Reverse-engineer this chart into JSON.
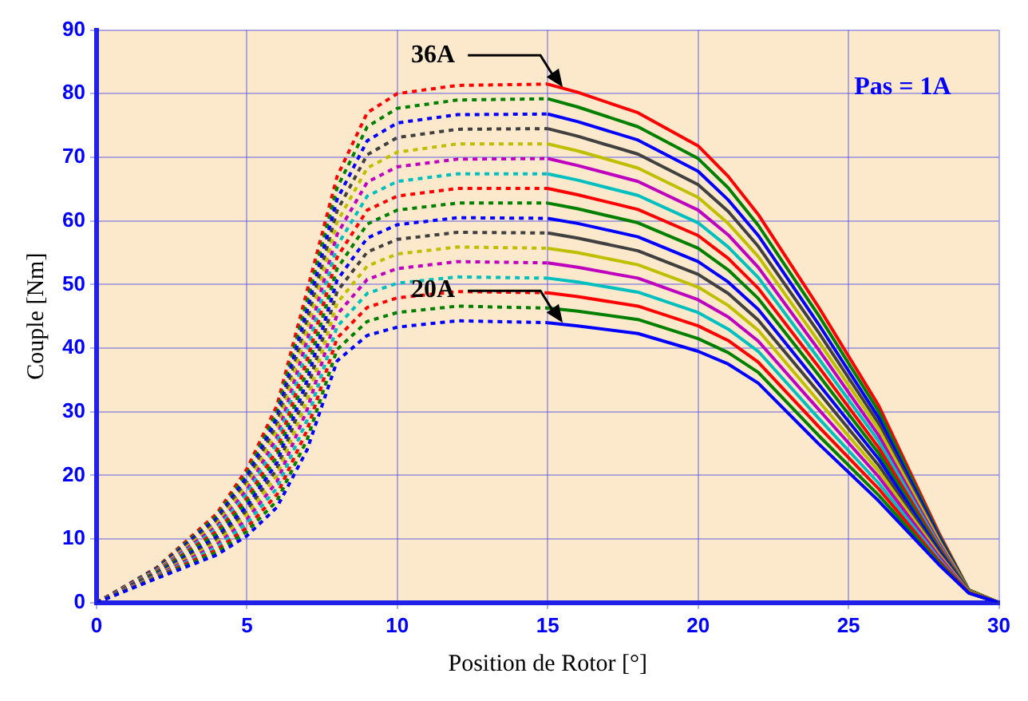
{
  "chart_data": {
    "type": "line",
    "xlabel": "Position de Rotor [°]",
    "ylabel": "Couple [Nm]",
    "xlim": [
      0,
      30
    ],
    "xticks": [
      0,
      5,
      10,
      15,
      20,
      25,
      30
    ],
    "ylim": [
      0,
      90
    ],
    "yticks": [
      0,
      10,
      20,
      30,
      40,
      50,
      60,
      70,
      80,
      90
    ],
    "grid": true,
    "legend": false,
    "marker": "none",
    "annotations": [
      {
        "text": "36A",
        "x": 15.5,
        "y": 81
      },
      {
        "text": "20A",
        "x": 15.5,
        "y": 44
      },
      "Pas = 1A"
    ],
    "series": [
      {
        "color": "#0000ff",
        "line_style": "dotted",
        "x": [
          0,
          2,
          4,
          5,
          6,
          7,
          8,
          9,
          10,
          12,
          15
        ],
        "values": [
          0,
          3.8,
          7.5,
          10.5,
          15,
          24,
          38,
          42,
          43.3,
          44.3,
          44
        ]
      },
      {
        "color": "#008000",
        "line_style": "dotted",
        "x": [
          0,
          2,
          4,
          5,
          6,
          7,
          8,
          9,
          10,
          12,
          15
        ],
        "values": [
          0,
          3.9,
          7.9,
          11.2,
          16,
          25.6,
          39.8,
          44.2,
          45.6,
          46.6,
          46.3
        ]
      },
      {
        "color": "#ff0000",
        "line_style": "dotted",
        "x": [
          0,
          2,
          4,
          5,
          6,
          7,
          8,
          9,
          10,
          12,
          15
        ],
        "values": [
          0,
          4.0,
          8.3,
          11.8,
          17,
          27.1,
          41.6,
          46.4,
          47.9,
          48.9,
          48.7
        ]
      },
      {
        "color": "#00bfbf",
        "line_style": "dotted",
        "x": [
          0,
          2,
          4,
          5,
          6,
          7,
          8,
          9,
          10,
          12,
          15
        ],
        "values": [
          0,
          4.1,
          8.7,
          12.5,
          18,
          28.7,
          43.4,
          48.6,
          50.2,
          51.2,
          51.0
        ]
      },
      {
        "color": "#bf00bf",
        "line_style": "dotted",
        "x": [
          0,
          2,
          4,
          5,
          6,
          7,
          8,
          9,
          10,
          12,
          15
        ],
        "values": [
          0,
          4.2,
          9.1,
          13.1,
          19,
          30.3,
          45.3,
          50.8,
          52.5,
          53.6,
          53.4
        ]
      },
      {
        "color": "#bfbf00",
        "line_style": "dotted",
        "x": [
          0,
          2,
          4,
          5,
          6,
          7,
          8,
          9,
          10,
          12,
          15
        ],
        "values": [
          0,
          4.3,
          9.5,
          13.8,
          20,
          31.8,
          47.1,
          52.9,
          54.8,
          55.9,
          55.7
        ]
      },
      {
        "color": "#404040",
        "line_style": "dotted",
        "x": [
          0,
          2,
          4,
          5,
          6,
          7,
          8,
          9,
          10,
          12,
          15
        ],
        "values": [
          0,
          4.4,
          9.9,
          14.4,
          21,
          33.4,
          48.9,
          55.1,
          57.1,
          58.2,
          58.1
        ]
      },
      {
        "color": "#0000ff",
        "line_style": "dotted",
        "x": [
          0,
          2,
          4,
          5,
          6,
          7,
          8,
          9,
          10,
          12,
          15
        ],
        "values": [
          0,
          4.5,
          10.3,
          15.1,
          22,
          34.9,
          50.7,
          57.3,
          59.4,
          60.5,
          60.4
        ]
      },
      {
        "color": "#008000",
        "line_style": "dotted",
        "x": [
          0,
          2,
          4,
          5,
          6,
          7,
          8,
          9,
          10,
          12,
          15
        ],
        "values": [
          0,
          4.7,
          10.8,
          15.8,
          23,
          36.5,
          52.5,
          59.5,
          61.7,
          62.8,
          62.8
        ]
      },
      {
        "color": "#ff0000",
        "line_style": "dotted",
        "x": [
          0,
          2,
          4,
          5,
          6,
          7,
          8,
          9,
          10,
          12,
          15
        ],
        "values": [
          0,
          4.8,
          11.2,
          16.4,
          24,
          38.1,
          54.3,
          61.7,
          63.9,
          65.1,
          65.1
        ]
      },
      {
        "color": "#00bfbf",
        "line_style": "dotted",
        "x": [
          0,
          2,
          4,
          5,
          6,
          7,
          8,
          9,
          10,
          12,
          15
        ],
        "values": [
          0,
          4.9,
          11.6,
          17.1,
          25,
          39.6,
          56.1,
          63.9,
          66.2,
          67.4,
          67.4
        ]
      },
      {
        "color": "#bf00bf",
        "line_style": "dotted",
        "x": [
          0,
          2,
          4,
          5,
          6,
          7,
          8,
          9,
          10,
          12,
          15
        ],
        "values": [
          0,
          5.0,
          12.0,
          17.7,
          26,
          41.2,
          57.9,
          66.1,
          68.5,
          69.7,
          69.8
        ]
      },
      {
        "color": "#bfbf00",
        "line_style": "dotted",
        "x": [
          0,
          2,
          4,
          5,
          6,
          7,
          8,
          9,
          10,
          12,
          15
        ],
        "values": [
          0,
          5.1,
          12.4,
          18.4,
          27,
          42.8,
          59.8,
          68.3,
          70.8,
          72.1,
          72.1
        ]
      },
      {
        "color": "#404040",
        "line_style": "dotted",
        "x": [
          0,
          2,
          4,
          5,
          6,
          7,
          8,
          9,
          10,
          12,
          15
        ],
        "values": [
          0,
          5.2,
          12.8,
          19.0,
          28,
          44.3,
          61.6,
          70.4,
          73.1,
          74.4,
          74.5
        ]
      },
      {
        "color": "#0000ff",
        "line_style": "dotted",
        "x": [
          0,
          2,
          4,
          5,
          6,
          7,
          8,
          9,
          10,
          12,
          15
        ],
        "values": [
          0,
          5.3,
          13.2,
          19.7,
          29,
          45.9,
          63.4,
          72.6,
          75.4,
          76.7,
          76.8
        ]
      },
      {
        "color": "#008000",
        "line_style": "dotted",
        "x": [
          0,
          2,
          4,
          5,
          6,
          7,
          8,
          9,
          10,
          12,
          15
        ],
        "values": [
          0,
          5.4,
          13.6,
          20.3,
          30,
          47.4,
          65.2,
          74.8,
          77.7,
          79.0,
          79.2
        ]
      },
      {
        "color": "#ff0000",
        "line_style": "dotted",
        "x": [
          0,
          2,
          4,
          5,
          6,
          7,
          8,
          9,
          10,
          12,
          15
        ],
        "values": [
          0,
          5.5,
          14.0,
          21.0,
          31,
          49,
          67,
          77,
          80,
          81.3,
          81.5
        ]
      },
      {
        "color": "#0000ff",
        "line_style": "solid",
        "x": [
          15,
          16,
          18,
          20,
          21,
          22,
          24,
          26,
          28,
          29,
          30
        ],
        "values": [
          44,
          43.5,
          42.3,
          39.5,
          37.5,
          34.5,
          25,
          16,
          6,
          1.5,
          0
        ]
      },
      {
        "color": "#008000",
        "line_style": "solid",
        "x": [
          15,
          16,
          18,
          20,
          21,
          22,
          24,
          26,
          28,
          29,
          30
        ],
        "values": [
          46.3,
          45.8,
          44.5,
          41.5,
          39.3,
          36.2,
          26.3,
          16.9,
          6.3,
          1.5,
          0
        ]
      },
      {
        "color": "#ff0000",
        "line_style": "solid",
        "x": [
          15,
          16,
          18,
          20,
          21,
          22,
          24,
          26,
          28,
          29,
          30
        ],
        "values": [
          48.7,
          48.1,
          46.6,
          43.5,
          41.2,
          37.8,
          27.7,
          17.9,
          6.6,
          1.6,
          0
        ]
      },
      {
        "color": "#00bfbf",
        "line_style": "solid",
        "x": [
          15,
          16,
          18,
          20,
          21,
          22,
          24,
          26,
          28,
          29,
          30
        ],
        "values": [
          51.0,
          50.4,
          48.8,
          45.6,
          43.0,
          39.5,
          29.0,
          18.8,
          6.9,
          1.6,
          0
        ]
      },
      {
        "color": "#bf00bf",
        "line_style": "solid",
        "x": [
          15,
          16,
          18,
          20,
          21,
          22,
          24,
          26,
          28,
          29,
          30
        ],
        "values": [
          53.4,
          52.7,
          51.0,
          47.6,
          44.9,
          41.1,
          30.4,
          19.8,
          7.3,
          1.6,
          0
        ]
      },
      {
        "color": "#bfbf00",
        "line_style": "solid",
        "x": [
          15,
          16,
          18,
          20,
          21,
          22,
          24,
          26,
          28,
          29,
          30
        ],
        "values": [
          55.7,
          55.0,
          53.1,
          49.6,
          46.7,
          42.8,
          31.7,
          20.7,
          7.6,
          1.7,
          0
        ]
      },
      {
        "color": "#404040",
        "line_style": "solid",
        "x": [
          15,
          16,
          18,
          20,
          21,
          22,
          24,
          26,
          28,
          29,
          30
        ],
        "values": [
          58.1,
          57.3,
          55.3,
          51.6,
          48.6,
          44.4,
          33.1,
          21.6,
          7.9,
          1.7,
          0
        ]
      },
      {
        "color": "#0000ff",
        "line_style": "solid",
        "x": [
          15,
          16,
          18,
          20,
          21,
          22,
          24,
          26,
          28,
          29,
          30
        ],
        "values": [
          60.4,
          59.6,
          57.5,
          53.6,
          50.4,
          46.1,
          34.4,
          22.6,
          8.2,
          1.7,
          0
        ]
      },
      {
        "color": "#008000",
        "line_style": "solid",
        "x": [
          15,
          16,
          18,
          20,
          21,
          22,
          24,
          26,
          28,
          29,
          30
        ],
        "values": [
          62.8,
          61.9,
          59.7,
          55.7,
          52.3,
          47.8,
          35.8,
          23.5,
          8.5,
          1.8,
          0
        ]
      },
      {
        "color": "#ff0000",
        "line_style": "solid",
        "x": [
          15,
          16,
          18,
          20,
          21,
          22,
          24,
          26,
          28,
          29,
          30
        ],
        "values": [
          65.1,
          64.1,
          61.8,
          57.7,
          54.1,
          49.4,
          37.1,
          24.4,
          8.8,
          1.8,
          0
        ]
      },
      {
        "color": "#00bfbf",
        "line_style": "solid",
        "x": [
          15,
          16,
          18,
          20,
          21,
          22,
          24,
          26,
          28,
          29,
          30
        ],
        "values": [
          67.4,
          66.4,
          64.0,
          59.7,
          55.9,
          51.1,
          38.4,
          25.4,
          9.1,
          1.8,
          0
        ]
      },
      {
        "color": "#bf00bf",
        "line_style": "solid",
        "x": [
          15,
          16,
          18,
          20,
          21,
          22,
          24,
          26,
          28,
          29,
          30
        ],
        "values": [
          69.8,
          68.7,
          66.2,
          61.7,
          57.8,
          52.7,
          39.8,
          26.3,
          9.4,
          1.8,
          0
        ]
      },
      {
        "color": "#bfbf00",
        "line_style": "solid",
        "x": [
          15,
          16,
          18,
          20,
          21,
          22,
          24,
          26,
          28,
          29,
          30
        ],
        "values": [
          72.1,
          71.0,
          68.3,
          63.7,
          59.6,
          54.4,
          41.1,
          27.3,
          9.8,
          1.9,
          0
        ]
      },
      {
        "color": "#404040",
        "line_style": "solid",
        "x": [
          15,
          16,
          18,
          20,
          21,
          22,
          24,
          26,
          28,
          29,
          30
        ],
        "values": [
          74.5,
          73.3,
          70.5,
          65.7,
          61.5,
          56.0,
          42.5,
          28.2,
          10.1,
          1.9,
          0
        ]
      },
      {
        "color": "#0000ff",
        "line_style": "solid",
        "x": [
          15,
          16,
          18,
          20,
          21,
          22,
          24,
          26,
          28,
          29,
          30
        ],
        "values": [
          76.8,
          75.6,
          72.7,
          67.8,
          63.3,
          57.7,
          43.8,
          29.1,
          10.4,
          1.9,
          0
        ]
      },
      {
        "color": "#008000",
        "line_style": "solid",
        "x": [
          15,
          16,
          18,
          20,
          21,
          22,
          24,
          26,
          28,
          29,
          30
        ],
        "values": [
          79.2,
          77.9,
          74.8,
          69.8,
          65.2,
          59.3,
          45.2,
          30.1,
          10.7,
          2.0,
          0
        ]
      },
      {
        "color": "#ff0000",
        "line_style": "solid",
        "x": [
          15,
          16,
          18,
          20,
          21,
          22,
          24,
          26,
          28,
          29,
          30
        ],
        "values": [
          81.5,
          80.2,
          77.0,
          71.8,
          67.0,
          61.0,
          46.5,
          31,
          11,
          2.0,
          0
        ]
      }
    ]
  }
}
